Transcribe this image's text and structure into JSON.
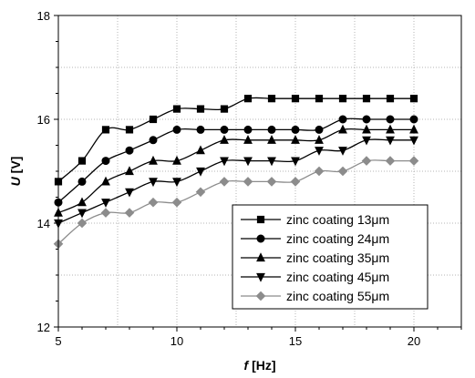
{
  "chart_data": {
    "type": "line",
    "xlabel": {
      "var": "f",
      "unit": "[Hz]"
    },
    "ylabel": {
      "var": "U",
      "unit": "[V]"
    },
    "xlim": [
      5,
      22
    ],
    "ylim": [
      12,
      18
    ],
    "xticks": [
      5,
      10,
      15,
      20
    ],
    "yticks": [
      12,
      14,
      16,
      18
    ],
    "grid": "dotted",
    "legend_position": "bottom-right",
    "x": [
      5,
      6,
      7,
      8,
      9,
      10,
      11,
      12,
      13,
      14,
      15,
      16,
      17,
      18,
      19,
      20
    ],
    "series": [
      {
        "name": "zinc coating  13μm",
        "marker": "square",
        "color": "#000000",
        "values": [
          14.8,
          15.2,
          15.8,
          15.8,
          16.0,
          16.2,
          16.2,
          16.2,
          16.4,
          16.4,
          16.4,
          16.4,
          16.4,
          16.4,
          16.4,
          16.4
        ]
      },
      {
        "name": "zinc coating  24μm",
        "marker": "circle",
        "color": "#000000",
        "values": [
          14.4,
          14.8,
          15.2,
          15.4,
          15.6,
          15.8,
          15.8,
          15.8,
          15.8,
          15.8,
          15.8,
          15.8,
          16.0,
          16.0,
          16.0,
          16.0
        ]
      },
      {
        "name": "zinc coating  35μm",
        "marker": "triangle-up",
        "color": "#000000",
        "values": [
          14.2,
          14.4,
          14.8,
          15.0,
          15.2,
          15.2,
          15.4,
          15.6,
          15.6,
          15.6,
          15.6,
          15.6,
          15.8,
          15.8,
          15.8,
          15.8
        ]
      },
      {
        "name": "zinc coating  45μm",
        "marker": "triangle-down",
        "color": "#000000",
        "values": [
          14.0,
          14.2,
          14.4,
          14.6,
          14.8,
          14.8,
          15.0,
          15.2,
          15.2,
          15.2,
          15.2,
          15.4,
          15.4,
          15.6,
          15.6,
          15.6
        ]
      },
      {
        "name": "zinc coating  55μm",
        "marker": "diamond",
        "color": "#8c8c8c",
        "values": [
          13.6,
          14.0,
          14.2,
          14.2,
          14.4,
          14.4,
          14.6,
          14.8,
          14.8,
          14.8,
          14.8,
          15.0,
          15.0,
          15.2,
          15.2,
          15.2
        ]
      }
    ]
  }
}
